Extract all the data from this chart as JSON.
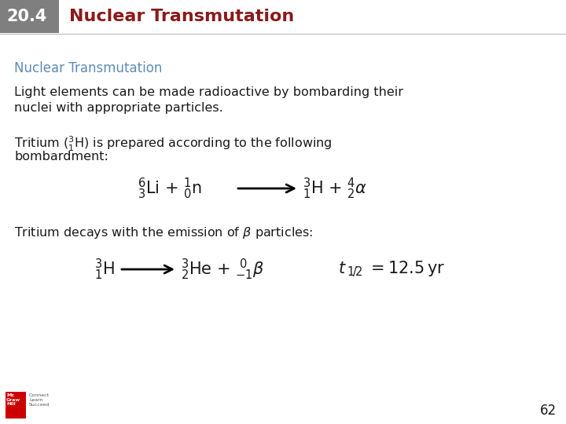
{
  "header_box_color": "#7f7f7f",
  "header_text_number": "20.4",
  "header_title_color": "#8B1A1A",
  "header_title": "Nuclear Transmutation",
  "subtitle_color": "#5b8db8",
  "subtitle_text": "Nuclear Transmutation",
  "body_text_1a": "Light elements can be made radioactive by bombarding their",
  "body_text_1b": "nuclei with appropriate particles.",
  "body_text_2a": "Tritium (",
  "body_text_2b": "H) is prepared according to the following",
  "body_text_2c": "bombardment:",
  "body_text_3": "Tritium decays with the emission of ",
  "page_number": "62",
  "bg_color": "#ffffff",
  "text_color": "#1a1a1a"
}
